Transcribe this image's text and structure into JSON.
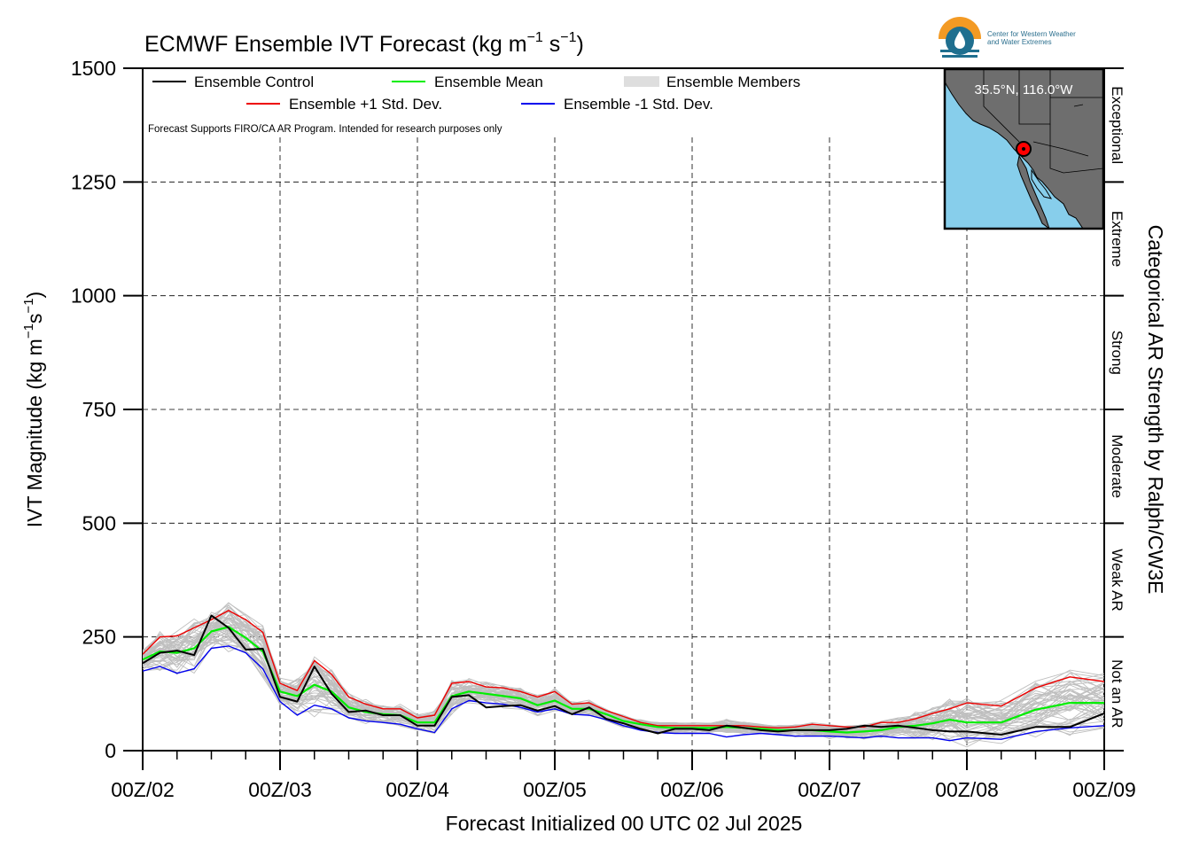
{
  "title_main": "ECMWF Ensemble IVT Forecast (kg m",
  "title_sup1": "−1",
  "title_mid": " s",
  "title_sup2": "−1",
  "title_end": ")",
  "ylabel_main": "IVT Magnitude (kg m",
  "ylabel_sup1": "−1",
  "ylabel_mid": "s",
  "ylabel_sup2": "−1",
  "ylabel_end": ")",
  "xlabel": "Forecast Initialized 00 UTC 02 Jul 2025",
  "right_label": "Categorical AR Strength by Ralph/CW3E",
  "disclaimer": "Forecast Supports FIRO/CA AR Program. Intended for research purposes only",
  "legend": {
    "control": "Ensemble Control",
    "mean": "Ensemble Mean",
    "members": "Ensemble Members",
    "plus_std": "Ensemble +1 Std. Dev.",
    "minus_std": "Ensemble -1 Std. Dev."
  },
  "logo": {
    "line1": "Center for Western Weather",
    "line2": "and Water Extremes"
  },
  "inset": {
    "location": "35.5°N, 116.0°W"
  },
  "categories": [
    "Not an AR",
    "Weak AR",
    "Moderate",
    "Strong",
    "Extreme",
    "Exceptional"
  ],
  "colors": {
    "control": "#000000",
    "mean": "#00ee00",
    "plus_std": "#ee0000",
    "minus_std": "#0000ee",
    "members": "#bfbfbf",
    "ocean": "#87ceeb",
    "land": "#6e6e6e"
  },
  "chart_data": {
    "type": "line",
    "x_unit": "forecast day (00Z of July 2025)",
    "x": [
      2.0,
      2.125,
      2.25,
      2.375,
      2.5,
      2.625,
      2.75,
      2.875,
      3.0,
      3.125,
      3.25,
      3.375,
      3.5,
      3.625,
      3.75,
      3.875,
      4.0,
      4.125,
      4.25,
      4.375,
      4.5,
      4.625,
      4.75,
      4.875,
      5.0,
      5.125,
      5.25,
      5.375,
      5.5,
      5.625,
      5.75,
      5.875,
      6.0,
      6.125,
      6.25,
      6.375,
      6.5,
      6.625,
      6.75,
      6.875,
      7.0,
      7.125,
      7.25,
      7.375,
      7.5,
      7.625,
      7.75,
      7.875,
      8.0,
      8.25,
      8.5,
      8.75,
      9.0
    ],
    "xlim": [
      2,
      9
    ],
    "xticks": [
      2,
      3,
      4,
      5,
      6,
      7,
      8,
      9
    ],
    "xtick_labels": [
      "00Z/02",
      "00Z/03",
      "00Z/04",
      "00Z/05",
      "00Z/06",
      "00Z/07",
      "00Z/08",
      "00Z/09"
    ],
    "ylim": [
      0,
      1500
    ],
    "yticks": [
      0,
      250,
      500,
      750,
      1000,
      1250,
      1500
    ],
    "ytick_labels": [
      "0",
      "250",
      "500",
      "750",
      "1000",
      "1250",
      "1500"
    ],
    "category_bounds": [
      0,
      250,
      500,
      750,
      1000,
      1250,
      1500
    ],
    "grid": true,
    "series": [
      {
        "name": "Ensemble Control",
        "values": [
          192,
          215,
          220,
          210,
          297,
          270,
          222,
          224,
          118,
          108,
          185,
          125,
          85,
          88,
          78,
          78,
          55,
          55,
          118,
          122,
          95,
          98,
          100,
          88,
          98,
          80,
          95,
          70,
          60,
          48,
          38,
          48,
          48,
          45,
          55,
          50,
          45,
          42,
          45,
          45,
          45,
          48,
          55,
          52,
          55,
          50,
          45,
          42,
          42,
          35,
          52,
          52,
          82
        ]
      },
      {
        "name": "Ensemble Mean",
        "values": [
          200,
          218,
          215,
          225,
          262,
          272,
          248,
          218,
          130,
          120,
          145,
          130,
          95,
          85,
          80,
          78,
          62,
          62,
          120,
          130,
          125,
          120,
          115,
          100,
          110,
          92,
          92,
          80,
          65,
          58,
          52,
          50,
          50,
          50,
          52,
          50,
          48,
          45,
          45,
          45,
          42,
          40,
          42,
          45,
          52,
          55,
          60,
          68,
          62,
          62,
          90,
          105,
          105
        ]
      },
      {
        "name": "Ensemble +1 Std. Dev.",
        "values": [
          212,
          250,
          252,
          270,
          288,
          308,
          288,
          260,
          148,
          132,
          198,
          168,
          118,
          102,
          92,
          92,
          72,
          78,
          148,
          152,
          140,
          138,
          130,
          118,
          130,
          102,
          105,
          88,
          75,
          62,
          55,
          55,
          55,
          55,
          55,
          55,
          52,
          50,
          52,
          58,
          55,
          52,
          52,
          62,
          62,
          70,
          82,
          92,
          105,
          98,
          138,
          162,
          152
        ]
      },
      {
        "name": "Ensemble -1 Std. Dev.",
        "values": [
          175,
          185,
          170,
          180,
          225,
          230,
          215,
          180,
          108,
          78,
          100,
          92,
          72,
          65,
          62,
          58,
          48,
          40,
          92,
          110,
          105,
          102,
          95,
          85,
          92,
          80,
          78,
          68,
          55,
          45,
          40,
          38,
          38,
          38,
          30,
          35,
          38,
          35,
          32,
          32,
          32,
          30,
          28,
          32,
          28,
          28,
          28,
          22,
          28,
          25,
          42,
          50,
          55
        ]
      }
    ],
    "members_note": "~50 ensemble member traces (gray) scattered around the mean"
  }
}
